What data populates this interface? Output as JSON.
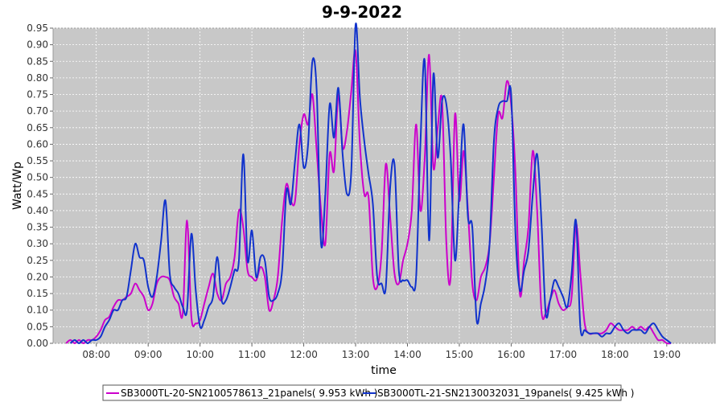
{
  "chart_data": {
    "type": "line",
    "title": "9-9-2022",
    "xlabel": "time",
    "ylabel": "Watt/Wp",
    "ylim": [
      0,
      0.95
    ],
    "xlim": [
      "07:10",
      "19:56"
    ],
    "y_ticks": [
      "0.00",
      "0.05",
      "0.10",
      "0.15",
      "0.20",
      "0.25",
      "0.30",
      "0.35",
      "0.40",
      "0.45",
      "0.50",
      "0.55",
      "0.60",
      "0.65",
      "0.70",
      "0.75",
      "0.80",
      "0.85",
      "0.90",
      "0.95"
    ],
    "x_ticks": [
      "08:00",
      "09:00",
      "10:00",
      "11:00",
      "12:00",
      "13:00",
      "14:00",
      "15:00",
      "16:00",
      "17:00",
      "18:00",
      "19:00"
    ],
    "grid": true,
    "background": "#c8c8c8",
    "legend_position": "bottom",
    "series": [
      {
        "name": "SB3000TL-20-SN2100578613_21panels( 9.953 kWh )",
        "color": "#cc00cc",
        "points": [
          [
            "07:25",
            0.0
          ],
          [
            "07:30",
            0.01
          ],
          [
            "07:35",
            0.0
          ],
          [
            "07:40",
            0.01
          ],
          [
            "07:45",
            0.0
          ],
          [
            "07:50",
            0.01
          ],
          [
            "07:55",
            0.01
          ],
          [
            "08:00",
            0.02
          ],
          [
            "08:05",
            0.04
          ],
          [
            "08:10",
            0.07
          ],
          [
            "08:15",
            0.08
          ],
          [
            "08:20",
            0.11
          ],
          [
            "08:25",
            0.13
          ],
          [
            "08:30",
            0.13
          ],
          [
            "08:35",
            0.14
          ],
          [
            "08:40",
            0.15
          ],
          [
            "08:45",
            0.18
          ],
          [
            "08:50",
            0.16
          ],
          [
            "08:55",
            0.14
          ],
          [
            "09:00",
            0.1
          ],
          [
            "09:05",
            0.12
          ],
          [
            "09:10",
            0.18
          ],
          [
            "09:15",
            0.2
          ],
          [
            "09:20",
            0.2
          ],
          [
            "09:25",
            0.19
          ],
          [
            "09:30",
            0.14
          ],
          [
            "09:35",
            0.12
          ],
          [
            "09:40",
            0.09
          ],
          [
            "09:45",
            0.37
          ],
          [
            "09:50",
            0.08
          ],
          [
            "09:55",
            0.06
          ],
          [
            "10:00",
            0.07
          ],
          [
            "10:05",
            0.12
          ],
          [
            "10:10",
            0.17
          ],
          [
            "10:15",
            0.21
          ],
          [
            "10:20",
            0.15
          ],
          [
            "10:25",
            0.13
          ],
          [
            "10:30",
            0.18
          ],
          [
            "10:35",
            0.2
          ],
          [
            "10:40",
            0.26
          ],
          [
            "10:45",
            0.4
          ],
          [
            "10:50",
            0.35
          ],
          [
            "10:55",
            0.22
          ],
          [
            "11:00",
            0.2
          ],
          [
            "11:05",
            0.19
          ],
          [
            "11:10",
            0.23
          ],
          [
            "11:15",
            0.2
          ],
          [
            "11:20",
            0.1
          ],
          [
            "11:25",
            0.13
          ],
          [
            "11:30",
            0.2
          ],
          [
            "11:35",
            0.37
          ],
          [
            "11:40",
            0.48
          ],
          [
            "11:45",
            0.43
          ],
          [
            "11:50",
            0.43
          ],
          [
            "11:55",
            0.6
          ],
          [
            "12:00",
            0.69
          ],
          [
            "12:05",
            0.66
          ],
          [
            "12:10",
            0.75
          ],
          [
            "12:15",
            0.58
          ],
          [
            "12:20",
            0.4
          ],
          [
            "12:25",
            0.3
          ],
          [
            "12:30",
            0.57
          ],
          [
            "12:35",
            0.52
          ],
          [
            "12:40",
            0.75
          ],
          [
            "12:45",
            0.59
          ],
          [
            "12:50",
            0.64
          ],
          [
            "12:55",
            0.76
          ],
          [
            "13:00",
            0.88
          ],
          [
            "13:05",
            0.6
          ],
          [
            "13:10",
            0.45
          ],
          [
            "13:15",
            0.44
          ],
          [
            "13:20",
            0.2
          ],
          [
            "13:25",
            0.17
          ],
          [
            "13:30",
            0.27
          ],
          [
            "13:35",
            0.54
          ],
          [
            "13:40",
            0.38
          ],
          [
            "13:45",
            0.21
          ],
          [
            "13:50",
            0.18
          ],
          [
            "13:55",
            0.25
          ],
          [
            "14:00",
            0.3
          ],
          [
            "14:05",
            0.4
          ],
          [
            "14:10",
            0.66
          ],
          [
            "14:15",
            0.4
          ],
          [
            "14:20",
            0.56
          ],
          [
            "14:25",
            0.87
          ],
          [
            "14:30",
            0.53
          ],
          [
            "14:35",
            0.65
          ],
          [
            "14:40",
            0.73
          ],
          [
            "14:45",
            0.3
          ],
          [
            "14:50",
            0.2
          ],
          [
            "14:55",
            0.69
          ],
          [
            "15:00",
            0.43
          ],
          [
            "15:05",
            0.58
          ],
          [
            "15:10",
            0.4
          ],
          [
            "15:15",
            0.18
          ],
          [
            "15:20",
            0.13
          ],
          [
            "15:25",
            0.2
          ],
          [
            "15:30",
            0.23
          ],
          [
            "15:35",
            0.3
          ],
          [
            "15:40",
            0.5
          ],
          [
            "15:45",
            0.69
          ],
          [
            "15:50",
            0.68
          ],
          [
            "15:55",
            0.79
          ],
          [
            "16:00",
            0.72
          ],
          [
            "16:05",
            0.51
          ],
          [
            "16:10",
            0.15
          ],
          [
            "16:15",
            0.25
          ],
          [
            "16:20",
            0.35
          ],
          [
            "16:25",
            0.58
          ],
          [
            "16:30",
            0.4
          ],
          [
            "16:35",
            0.1
          ],
          [
            "16:40",
            0.09
          ],
          [
            "16:45",
            0.13
          ],
          [
            "16:50",
            0.16
          ],
          [
            "16:55",
            0.12
          ],
          [
            "17:00",
            0.1
          ],
          [
            "17:05",
            0.11
          ],
          [
            "17:10",
            0.14
          ],
          [
            "17:15",
            0.36
          ],
          [
            "17:20",
            0.21
          ],
          [
            "17:25",
            0.06
          ],
          [
            "17:30",
            0.03
          ],
          [
            "17:35",
            0.03
          ],
          [
            "17:40",
            0.03
          ],
          [
            "17:45",
            0.03
          ],
          [
            "17:50",
            0.04
          ],
          [
            "17:55",
            0.06
          ],
          [
            "18:00",
            0.05
          ],
          [
            "18:05",
            0.04
          ],
          [
            "18:10",
            0.04
          ],
          [
            "18:15",
            0.04
          ],
          [
            "18:20",
            0.05
          ],
          [
            "18:25",
            0.04
          ],
          [
            "18:30",
            0.05
          ],
          [
            "18:35",
            0.04
          ],
          [
            "18:40",
            0.05
          ],
          [
            "18:45",
            0.03
          ],
          [
            "18:50",
            0.01
          ],
          [
            "18:55",
            0.01
          ],
          [
            "19:00",
            0.0
          ],
          [
            "19:05",
            0.0
          ]
        ]
      },
      {
        "name": "SB3000TL-21-SN2130032031_19panels( 9.425 kWh )",
        "color": "#1133cc",
        "points": [
          [
            "07:30",
            0.0
          ],
          [
            "07:35",
            0.01
          ],
          [
            "07:40",
            0.0
          ],
          [
            "07:45",
            0.01
          ],
          [
            "07:50",
            0.0
          ],
          [
            "07:55",
            0.01
          ],
          [
            "08:00",
            0.01
          ],
          [
            "08:05",
            0.02
          ],
          [
            "08:10",
            0.05
          ],
          [
            "08:15",
            0.07
          ],
          [
            "08:20",
            0.1
          ],
          [
            "08:25",
            0.1
          ],
          [
            "08:30",
            0.13
          ],
          [
            "08:35",
            0.14
          ],
          [
            "08:40",
            0.22
          ],
          [
            "08:45",
            0.3
          ],
          [
            "08:50",
            0.26
          ],
          [
            "08:55",
            0.25
          ],
          [
            "09:00",
            0.17
          ],
          [
            "09:05",
            0.14
          ],
          [
            "09:10",
            0.2
          ],
          [
            "09:15",
            0.31
          ],
          [
            "09:20",
            0.43
          ],
          [
            "09:25",
            0.21
          ],
          [
            "09:30",
            0.17
          ],
          [
            "09:35",
            0.15
          ],
          [
            "09:40",
            0.11
          ],
          [
            "09:45",
            0.1
          ],
          [
            "09:50",
            0.33
          ],
          [
            "09:55",
            0.16
          ],
          [
            "10:00",
            0.05
          ],
          [
            "10:05",
            0.07
          ],
          [
            "10:10",
            0.11
          ],
          [
            "10:15",
            0.14
          ],
          [
            "10:20",
            0.26
          ],
          [
            "10:25",
            0.13
          ],
          [
            "10:30",
            0.13
          ],
          [
            "10:35",
            0.17
          ],
          [
            "10:40",
            0.22
          ],
          [
            "10:45",
            0.25
          ],
          [
            "10:50",
            0.57
          ],
          [
            "10:55",
            0.25
          ],
          [
            "11:00",
            0.34
          ],
          [
            "11:05",
            0.2
          ],
          [
            "11:10",
            0.26
          ],
          [
            "11:15",
            0.25
          ],
          [
            "11:20",
            0.14
          ],
          [
            "11:25",
            0.13
          ],
          [
            "11:30",
            0.15
          ],
          [
            "11:35",
            0.22
          ],
          [
            "11:40",
            0.46
          ],
          [
            "11:45",
            0.42
          ],
          [
            "11:50",
            0.55
          ],
          [
            "11:55",
            0.66
          ],
          [
            "12:00",
            0.53
          ],
          [
            "12:05",
            0.6
          ],
          [
            "12:10",
            0.85
          ],
          [
            "12:15",
            0.76
          ],
          [
            "12:20",
            0.3
          ],
          [
            "12:25",
            0.45
          ],
          [
            "12:30",
            0.72
          ],
          [
            "12:35",
            0.62
          ],
          [
            "12:40",
            0.77
          ],
          [
            "12:45",
            0.57
          ],
          [
            "12:50",
            0.45
          ],
          [
            "12:55",
            0.52
          ],
          [
            "13:00",
            0.96
          ],
          [
            "13:05",
            0.74
          ],
          [
            "13:10",
            0.61
          ],
          [
            "13:15",
            0.51
          ],
          [
            "13:20",
            0.42
          ],
          [
            "13:25",
            0.2
          ],
          [
            "13:30",
            0.18
          ],
          [
            "13:35",
            0.17
          ],
          [
            "13:40",
            0.47
          ],
          [
            "13:45",
            0.54
          ],
          [
            "13:50",
            0.22
          ],
          [
            "13:55",
            0.19
          ],
          [
            "14:00",
            0.19
          ],
          [
            "14:05",
            0.17
          ],
          [
            "14:10",
            0.2
          ],
          [
            "14:15",
            0.6
          ],
          [
            "14:20",
            0.85
          ],
          [
            "14:25",
            0.31
          ],
          [
            "14:30",
            0.81
          ],
          [
            "14:35",
            0.56
          ],
          [
            "14:40",
            0.73
          ],
          [
            "14:45",
            0.72
          ],
          [
            "14:50",
            0.56
          ],
          [
            "14:55",
            0.25
          ],
          [
            "15:00",
            0.46
          ],
          [
            "15:05",
            0.66
          ],
          [
            "15:10",
            0.38
          ],
          [
            "15:15",
            0.35
          ],
          [
            "15:20",
            0.07
          ],
          [
            "15:25",
            0.12
          ],
          [
            "15:30",
            0.18
          ],
          [
            "15:35",
            0.3
          ],
          [
            "15:40",
            0.61
          ],
          [
            "15:45",
            0.71
          ],
          [
            "15:50",
            0.73
          ],
          [
            "15:55",
            0.73
          ],
          [
            "16:00",
            0.75
          ],
          [
            "16:05",
            0.33
          ],
          [
            "16:10",
            0.16
          ],
          [
            "16:15",
            0.22
          ],
          [
            "16:20",
            0.28
          ],
          [
            "16:25",
            0.45
          ],
          [
            "16:30",
            0.57
          ],
          [
            "16:35",
            0.37
          ],
          [
            "16:40",
            0.09
          ],
          [
            "16:45",
            0.13
          ],
          [
            "16:50",
            0.19
          ],
          [
            "16:55",
            0.17
          ],
          [
            "17:00",
            0.14
          ],
          [
            "17:05",
            0.11
          ],
          [
            "17:10",
            0.21
          ],
          [
            "17:15",
            0.37
          ],
          [
            "17:20",
            0.05
          ],
          [
            "17:25",
            0.04
          ],
          [
            "17:30",
            0.03
          ],
          [
            "17:35",
            0.03
          ],
          [
            "17:40",
            0.03
          ],
          [
            "17:45",
            0.02
          ],
          [
            "17:50",
            0.03
          ],
          [
            "17:55",
            0.03
          ],
          [
            "18:00",
            0.05
          ],
          [
            "18:05",
            0.06
          ],
          [
            "18:10",
            0.04
          ],
          [
            "18:15",
            0.03
          ],
          [
            "18:20",
            0.04
          ],
          [
            "18:25",
            0.04
          ],
          [
            "18:30",
            0.04
          ],
          [
            "18:35",
            0.03
          ],
          [
            "18:40",
            0.05
          ],
          [
            "18:45",
            0.06
          ],
          [
            "18:50",
            0.04
          ],
          [
            "18:55",
            0.02
          ],
          [
            "19:00",
            0.01
          ],
          [
            "19:05",
            0.0
          ]
        ]
      }
    ]
  }
}
